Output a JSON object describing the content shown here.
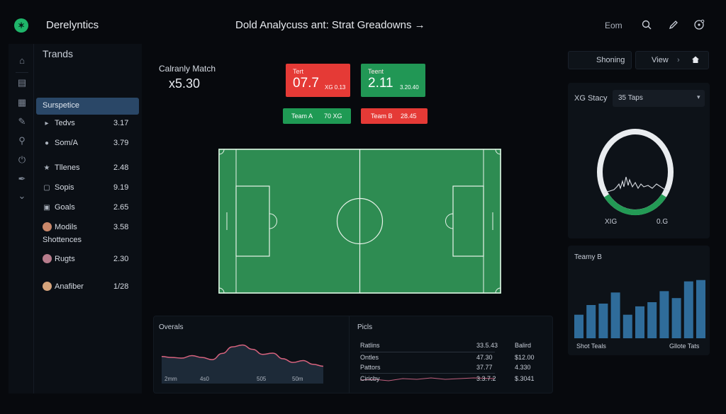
{
  "header": {
    "app_title": "Derelyntics",
    "page_title": "Dold Analycuss ant: Strat Greadowns →",
    "user": "Eom",
    "icons": [
      "search-icon",
      "pencil-icon",
      "settings-icon"
    ]
  },
  "rail": {
    "icons": [
      "home-icon",
      "inbox-icon",
      "calendar-icon",
      "edit-icon",
      "search-icon",
      "power-icon",
      "pen-icon",
      "chevron-down-icon"
    ]
  },
  "sidebar": {
    "title": "Trands",
    "active_item": "Surspetice",
    "items": [
      {
        "label": "Tedvs",
        "value": "3.17",
        "icon": "tag-icon"
      },
      {
        "label": "Som/A",
        "value": "3.79",
        "icon": "circle-icon"
      },
      {
        "label": "Tllenes",
        "value": "2.48",
        "icon": "star-icon"
      },
      {
        "label": "Sopis",
        "value": "9.19",
        "icon": "square-icon"
      },
      {
        "label": "Goals",
        "value": "2.65",
        "icon": "goal-icon"
      },
      {
        "label": "Modils",
        "value": "3.58",
        "icon": "avatar"
      },
      {
        "label": "Shottences",
        "value": "",
        "icon": ""
      },
      {
        "label": "Rugts",
        "value": "2.30",
        "icon": "avatar"
      },
      {
        "label": "Anafiber",
        "value": "1/28",
        "icon": "avatar"
      }
    ]
  },
  "match": {
    "label": "Calranly Match",
    "value": "x5.30",
    "score_red": {
      "top": "Tert",
      "big": "07.7",
      "small": "XG 0.13"
    },
    "score_green": {
      "top": "Teent",
      "big": "2.11",
      "small": "3.20.40"
    },
    "team_a": {
      "label": "Team A",
      "value": "70 XG"
    },
    "team_b": {
      "label": "Team B",
      "value": "28.45"
    }
  },
  "right": {
    "tab_showing": "Shoning",
    "tab_view": "View",
    "tab_view_arrow": "›",
    "home_icon": "home-icon",
    "xg_label": "XG Stacy",
    "xg_select": "35 Taps",
    "gauge_left": "XIG",
    "gauge_right": "0.G",
    "gauge_fill": 0.3,
    "team_b_title": "Teamy B",
    "foot_left": "Shot Teals",
    "foot_right": "Gllote Tats"
  },
  "bars": [
    0.34,
    0.48,
    0.5,
    0.66,
    0.34,
    0.46,
    0.52,
    0.68,
    0.58,
    0.82,
    0.84
  ],
  "bars_color": "#2f6c9a",
  "overals": {
    "title": "Overals",
    "ticks": [
      "2mm",
      "4s0",
      "505",
      "50m"
    ],
    "series": [
      0.55,
      0.52,
      0.5,
      0.58,
      0.52,
      0.45,
      0.65,
      0.86,
      0.92,
      0.78,
      0.62,
      0.66,
      0.48,
      0.36,
      0.42,
      0.3,
      0.24
    ]
  },
  "picks": {
    "title": "Picls",
    "rows": [
      {
        "c1": "Ratlins",
        "c2": "33.5.43",
        "c3": "Balird"
      },
      {
        "c1": "Ontles",
        "c2": "47.30",
        "c3": "$12.00"
      },
      {
        "c1": "Pattors",
        "c2": "37.77",
        "c3": "4.330"
      },
      {
        "c1": "Ciricby",
        "c2": "3.3.7.2",
        "c3": "$.3041"
      }
    ]
  }
}
